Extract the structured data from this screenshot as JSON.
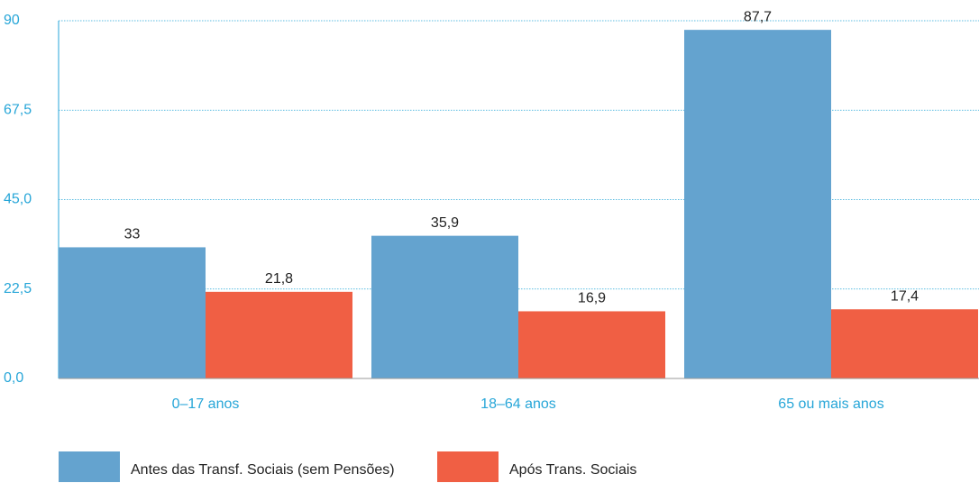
{
  "chart_data": {
    "type": "bar",
    "categories": [
      "0–17 anos",
      "18–64 anos",
      "65 ou mais anos"
    ],
    "series": [
      {
        "name": "Antes das Transf. Sociais (sem Pensões)",
        "color": "#64a3cf",
        "values": [
          33,
          35.9,
          87.7
        ],
        "value_labels": [
          "33",
          "35,9",
          "87,7"
        ]
      },
      {
        "name": "Após Trans. Sociais",
        "color": "#f05f44",
        "values": [
          21.8,
          16.9,
          17.4
        ],
        "value_labels": [
          "21,8",
          "16,9",
          "17,4"
        ]
      }
    ],
    "ylim": [
      0,
      90
    ],
    "yticks": [
      {
        "value": 0,
        "label": "0,0"
      },
      {
        "value": 22.5,
        "label": "22,5"
      },
      {
        "value": 45,
        "label": "45,0"
      },
      {
        "value": 67.5,
        "label": "67,5"
      },
      90
    ],
    "grid": true
  }
}
